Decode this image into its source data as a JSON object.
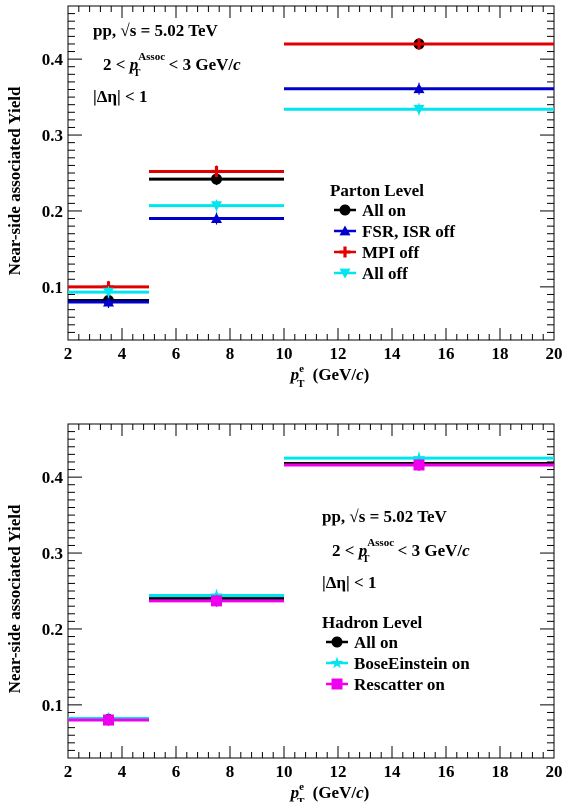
{
  "chart_data": [
    {
      "type": "scatter",
      "title": "",
      "annotation": {
        "line1": "pp,  √s = 5.02 TeV",
        "line2": "2 <  p_T^Assoc < 3 GeV/c",
        "line3": "|Δη| < 1"
      },
      "xlabel": "p_T^e (GeV/c)",
      "ylabel": "Near-side associated Yield",
      "xlim": [
        2,
        20
      ],
      "ylim": [
        0.03,
        0.47
      ],
      "xticks": [
        "2",
        "4",
        "6",
        "8",
        "10",
        "12",
        "14",
        "16",
        "18",
        "20"
      ],
      "yticks": [
        "0.1",
        "0.2",
        "0.3",
        "0.4"
      ],
      "legend_title": "Parton Level",
      "legend_position": "center-right",
      "bins": [
        [
          2,
          5
        ],
        [
          5,
          10
        ],
        [
          10,
          20
        ]
      ],
      "x": [
        3.5,
        7.5,
        15
      ],
      "series": [
        {
          "name": "All on",
          "color": "#000000",
          "marker": "circle",
          "values": [
            0.082,
            0.242,
            0.42
          ]
        },
        {
          "name": "FSR, ISR off",
          "color": "#0000cc",
          "marker": "triangle-up",
          "values": [
            0.08,
            0.19,
            0.361
          ]
        },
        {
          "name": "MPI off",
          "color": "#e00000",
          "marker": "cross",
          "values": [
            0.1,
            0.252,
            0.42
          ]
        },
        {
          "name": "All off",
          "color": "#00e5ee",
          "marker": "triangle-down",
          "values": [
            0.093,
            0.207,
            0.334
          ]
        }
      ]
    },
    {
      "type": "scatter",
      "title": "",
      "annotation": {
        "line1": "pp,  √s = 5.02 TeV",
        "line2": "2 <  p_T^Assoc < 3 GeV/c",
        "line3": "|Δη| < 1"
      },
      "xlabel": "p_T^e (GeV/c)",
      "ylabel": "Near-side associated Yield",
      "xlim": [
        2,
        20
      ],
      "ylim": [
        0.03,
        0.47
      ],
      "xticks": [
        "2",
        "4",
        "6",
        "8",
        "10",
        "12",
        "14",
        "16",
        "18",
        "20"
      ],
      "yticks": [
        "0.1",
        "0.2",
        "0.3",
        "0.4"
      ],
      "legend_title": "Hadron Level",
      "legend_position": "center-right",
      "bins": [
        [
          2,
          5
        ],
        [
          5,
          10
        ],
        [
          10,
          20
        ]
      ],
      "x": [
        3.5,
        7.5,
        15
      ],
      "series": [
        {
          "name": "All on",
          "color": "#000000",
          "marker": "circle",
          "values": [
            0.081,
            0.24,
            0.418
          ]
        },
        {
          "name": "BoseEinstein on",
          "color": "#00e5ee",
          "marker": "star",
          "values": [
            0.082,
            0.244,
            0.425
          ]
        },
        {
          "name": "Rescatter on",
          "color": "#ee00ee",
          "marker": "square",
          "values": [
            0.08,
            0.237,
            0.416
          ]
        }
      ]
    }
  ]
}
